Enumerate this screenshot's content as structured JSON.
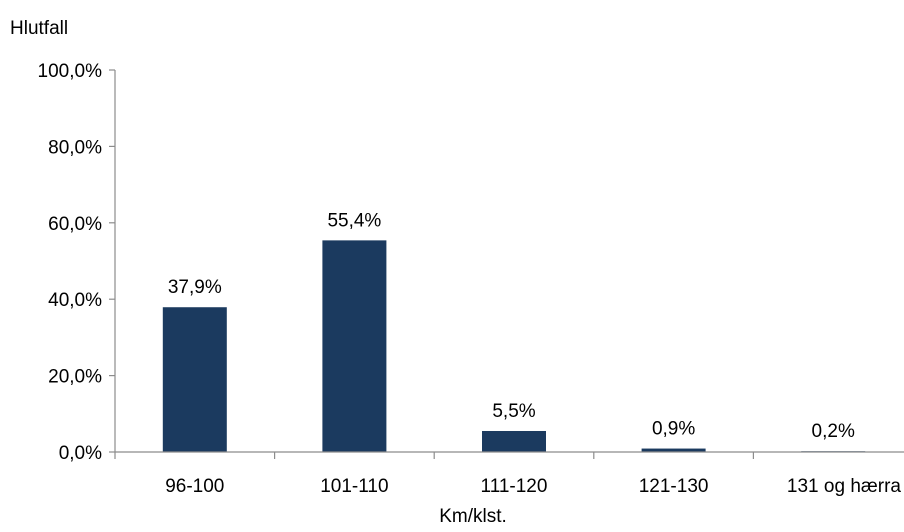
{
  "chart_data": {
    "type": "bar",
    "ylabel": "Hlutfall",
    "xlabel": "Km/klst.",
    "categories": [
      "96-100",
      "101-110",
      "111-120",
      "121-130",
      "131 og hærra"
    ],
    "values": [
      37.9,
      55.4,
      5.5,
      0.9,
      0.2
    ],
    "data_labels": [
      "37,9%",
      "55,4%",
      "5,5%",
      "0,9%",
      "0,2%"
    ],
    "ylim": [
      0,
      100
    ],
    "yticks": [
      0,
      20,
      40,
      60,
      80,
      100
    ],
    "ytick_labels": [
      "0,0%",
      "20,0%",
      "40,0%",
      "60,0%",
      "80,0%",
      "100,0%"
    ],
    "grid": false,
    "legend": "none",
    "bar_color": "#1b3a5f",
    "axis_color": "#8c8c8c"
  }
}
